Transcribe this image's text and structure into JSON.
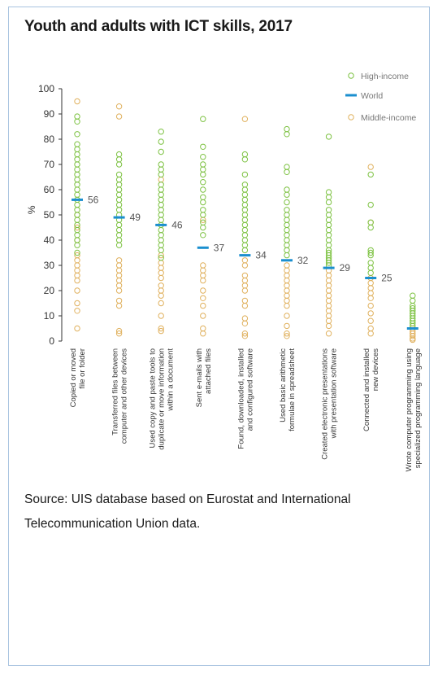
{
  "title": "Youth and adults with ICT skills, 2017",
  "source": "Source: UIS database based on Eurostat and International Telecommunication Union data.",
  "colors": {
    "high_income": "#7dc242",
    "world": "#1b8fcf",
    "middle_income": "#e0b15e",
    "frame": "#a9c4e0"
  },
  "chart_data": {
    "type": "scatter",
    "title": "Youth and adults with ICT skills, 2017",
    "ylabel": "%",
    "ylim": [
      0,
      100
    ],
    "yticks": [
      0,
      10,
      20,
      30,
      40,
      50,
      60,
      70,
      80,
      90,
      100
    ],
    "legend_position": "top-right",
    "legend": [
      "High-income",
      "World",
      "Middle-income"
    ],
    "categories": [
      [
        "Copied or moved",
        "file or folder"
      ],
      [
        "Transferred files between",
        "computer and other devices"
      ],
      [
        "Used copy and paste tools to",
        "duplicate or move information",
        "within a document"
      ],
      [
        "Sent e-mails with",
        "attached files"
      ],
      [
        "Found, downloaded, installed",
        "and configured software"
      ],
      [
        "Used basic arithmetic",
        "formulae in spreadsheet"
      ],
      [
        "Created electronic presentations",
        "with presentation software"
      ],
      [
        "Connected and installed",
        "new devices"
      ],
      [
        "Wrote computer programming using",
        "specialized programming language"
      ]
    ],
    "world": [
      56,
      49,
      46,
      37,
      34,
      32,
      29,
      25,
      5
    ],
    "world_labels": [
      "56",
      "49",
      "46",
      "37",
      "34",
      "32",
      "29",
      "25",
      ""
    ],
    "high_income": [
      [
        89,
        87,
        82,
        78,
        76,
        74,
        72,
        70,
        68,
        66,
        64,
        62,
        60,
        58,
        56,
        54,
        52,
        50,
        48,
        46,
        44,
        42,
        40,
        38,
        35
      ],
      [
        74,
        72,
        70,
        66,
        64,
        62,
        60,
        58,
        56,
        54,
        52,
        50,
        48,
        46,
        44,
        42,
        40,
        38
      ],
      [
        83,
        79,
        75,
        70,
        68,
        66,
        62,
        60,
        58,
        56,
        54,
        52,
        50,
        48,
        46,
        44,
        42,
        40,
        38,
        36,
        33
      ],
      [
        88,
        77,
        73,
        70,
        68,
        66,
        63,
        60,
        57,
        55,
        52,
        50,
        47,
        45,
        42
      ],
      [
        74,
        72,
        66,
        62,
        60,
        58,
        56,
        54,
        52,
        50,
        48,
        46,
        44,
        42,
        40,
        38,
        36
      ],
      [
        84,
        82,
        69,
        67,
        60,
        58,
        55,
        52,
        50,
        48,
        46,
        44,
        42,
        40,
        38,
        36,
        34
      ],
      [
        81,
        59,
        57,
        55,
        52,
        50,
        48,
        46,
        44,
        42,
        40,
        38,
        36,
        35,
        34,
        33,
        32,
        31,
        30
      ],
      [
        66,
        54,
        47,
        45,
        36,
        35,
        34,
        31,
        29,
        27
      ],
      [
        18,
        16,
        14,
        13,
        12,
        11,
        10,
        9,
        8,
        7,
        6
      ]
    ],
    "middle_income": [
      [
        95,
        50,
        45,
        40,
        34,
        32,
        30,
        28,
        26,
        24,
        20,
        15,
        12,
        5
      ],
      [
        93,
        89,
        32,
        30,
        28,
        26,
        24,
        22,
        20,
        16,
        14,
        4,
        3
      ],
      [
        64,
        34,
        31,
        29,
        27,
        25,
        22,
        20,
        18,
        15,
        10,
        5,
        4
      ],
      [
        48,
        30,
        28,
        26,
        24,
        20,
        17,
        14,
        10,
        5,
        3
      ],
      [
        88,
        32,
        30,
        26,
        24,
        22,
        20,
        16,
        14,
        9,
        7,
        3,
        2
      ],
      [
        30,
        28,
        26,
        24,
        22,
        20,
        18,
        16,
        14,
        10,
        6,
        3,
        2
      ],
      [
        28,
        26,
        24,
        22,
        20,
        18,
        16,
        14,
        12,
        10,
        8,
        6,
        3
      ],
      [
        69,
        47,
        25,
        23,
        21,
        19,
        17,
        14,
        11,
        8,
        5,
        3
      ],
      [
        5,
        4,
        3,
        2,
        1,
        0.5
      ]
    ]
  }
}
